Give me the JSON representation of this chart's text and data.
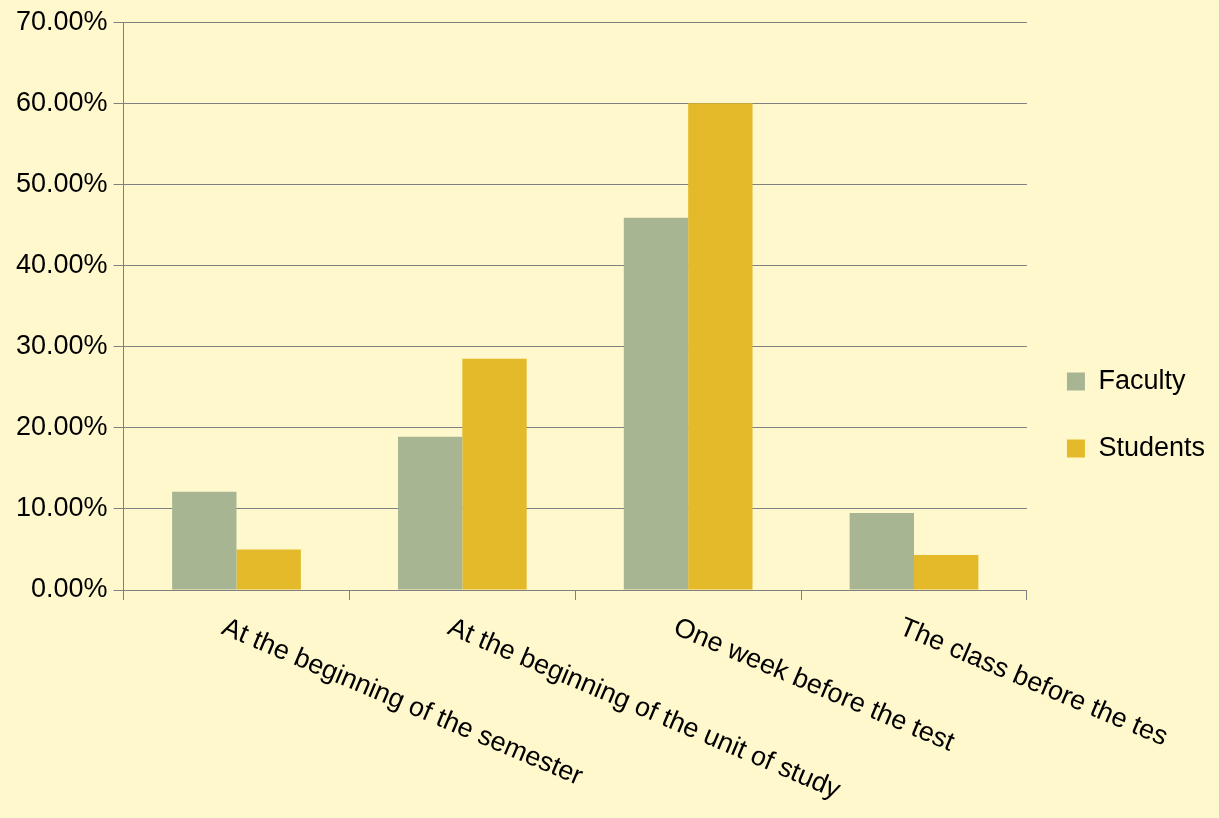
{
  "chart_data": {
    "type": "bar",
    "categories": [
      "At the beginning of the semester",
      "At the beginning of the unit of study",
      "One week before the test",
      "The class before the tes"
    ],
    "series": [
      {
        "name": "Faculty",
        "color": "#a7b593",
        "values": [
          12.1,
          18.9,
          45.9,
          9.5
        ]
      },
      {
        "name": "Students",
        "color": "#e5ba2a",
        "values": [
          5.0,
          28.5,
          60.0,
          4.3
        ]
      }
    ],
    "ylim": [
      0,
      70
    ],
    "yticks": [
      {
        "value": 0,
        "label": "0.00%"
      },
      {
        "value": 10,
        "label": "10.00%"
      },
      {
        "value": 20,
        "label": "20.00%"
      },
      {
        "value": 30,
        "label": "30.00%"
      },
      {
        "value": 40,
        "label": "40.00%"
      },
      {
        "value": 50,
        "label": "50.00%"
      },
      {
        "value": 60,
        "label": "60.00%"
      },
      {
        "value": 70,
        "label": "70.00%"
      }
    ],
    "grid": "y",
    "legend": "right"
  }
}
